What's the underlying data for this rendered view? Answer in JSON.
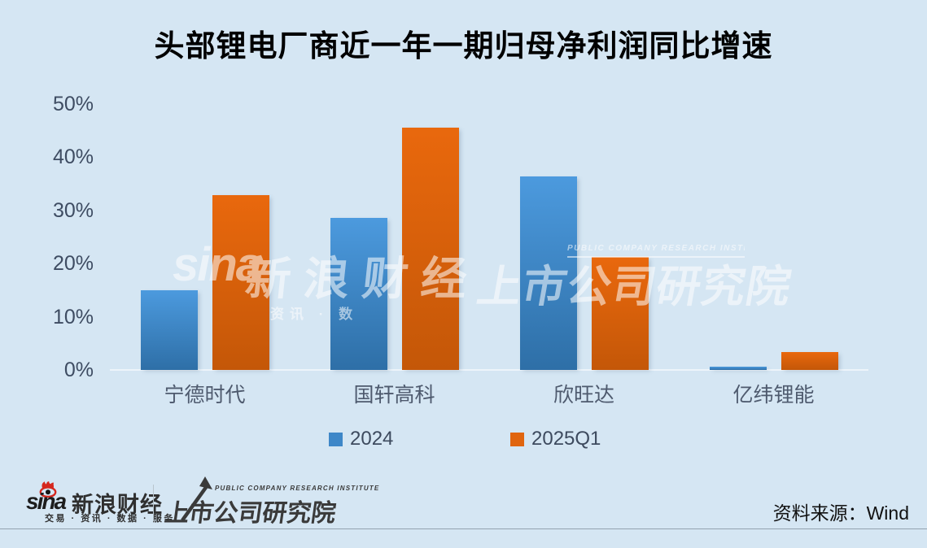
{
  "title": "头部锂电厂商近一年一期归母净利润同比增速",
  "chart_data": {
    "type": "bar",
    "title": "头部锂电厂商近一年一期归母净利润同比增速",
    "categories": [
      "宁德时代",
      "国轩高科",
      "欣旺达",
      "亿纬锂能"
    ],
    "series": [
      {
        "name": "2024",
        "color": "#3e87c8",
        "gradient_top": "#4c9ade",
        "gradient_bottom": "#2e6fa7",
        "values": [
          15.0,
          28.6,
          36.4,
          0.6
        ]
      },
      {
        "name": "2025Q1",
        "color": "#e0650f",
        "gradient_top": "#e9680d",
        "gradient_bottom": "#c45708",
        "values": [
          32.9,
          45.6,
          21.2,
          3.3
        ]
      }
    ],
    "xlabel": "",
    "ylabel": "",
    "ylim": [
      0,
      50
    ],
    "ytick_values": [
      0,
      10,
      20,
      30,
      40,
      50
    ],
    "ytick_suffix": "%",
    "grid": false,
    "legend_position": "bottom",
    "background_color": "#d5e6f3"
  },
  "watermark": {
    "brand": "sina",
    "brand_cn": "新浪财经",
    "tagline_fragment": "资讯 · 数",
    "institute_en": "PUBLIC COMPANY RESEARCH INSTITUTE",
    "institute_cn": "上市公司研究院"
  },
  "footer": {
    "sina": {
      "wordmark": "sina",
      "name": "新浪财经",
      "tagline": "交易 · 资讯 · 数据 · 服务"
    },
    "institute": {
      "en": "PUBLIC COMPANY RESEARCH INSTITUTE",
      "cn": "上市公司研究院"
    },
    "source": "资料来源：Wind"
  }
}
